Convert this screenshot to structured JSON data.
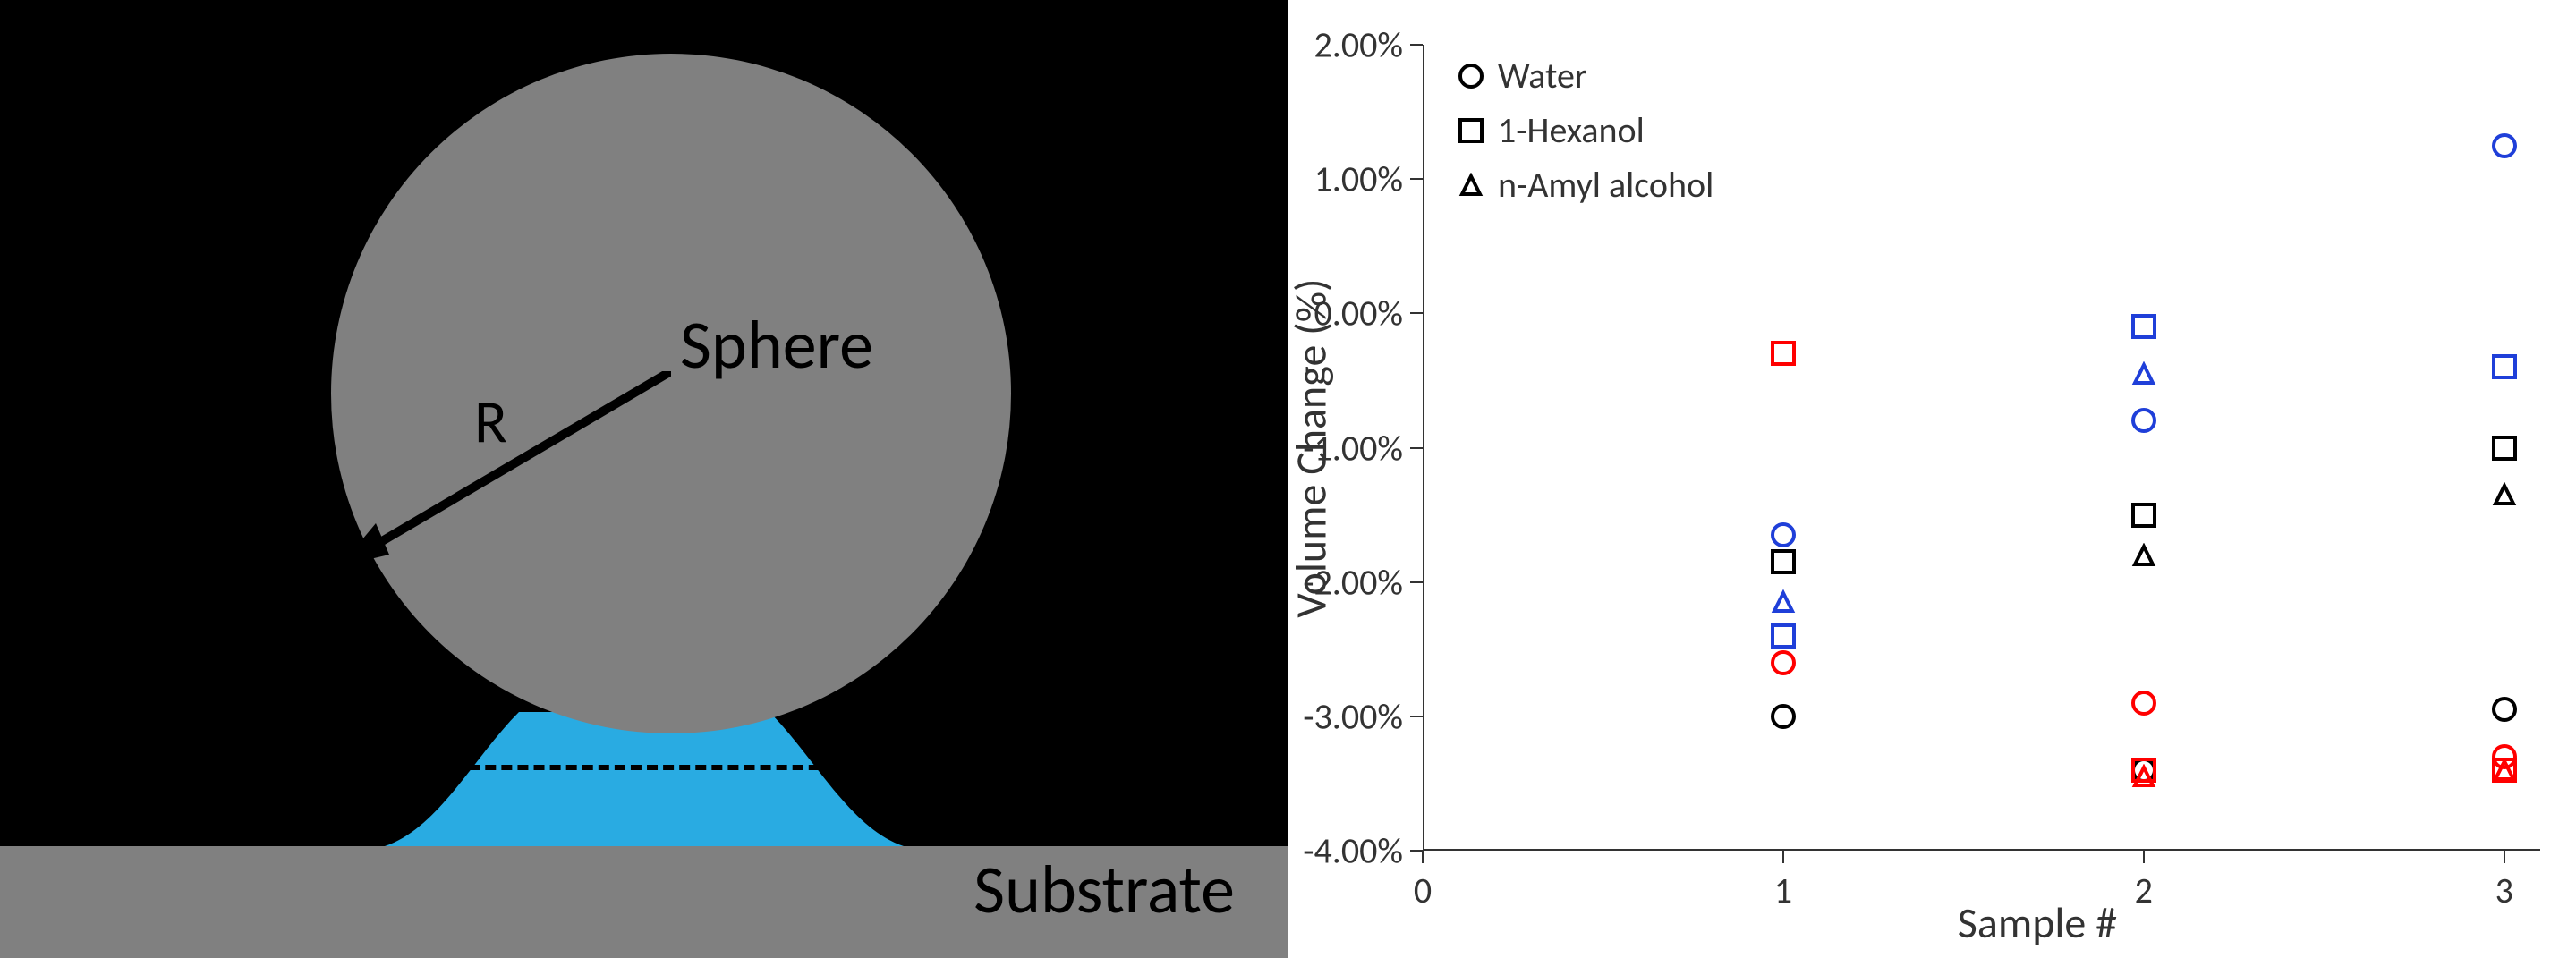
{
  "diagram": {
    "sphere_label": "Sphere",
    "radius_label": "R",
    "substrate_label": "Substrate",
    "sphere_color": "#808080",
    "substrate_color": "#808080",
    "meniscus_color": "#29abe2",
    "background_color": "#000000"
  },
  "chart": {
    "type": "scatter",
    "background_color": "#ffffff",
    "axis_color": "#333333",
    "text_color": "#333333",
    "label_fontsize": 40,
    "axis_title_fontsize": 48,
    "legend_fontsize": 40,
    "ylabel": "Volume Change (%)",
    "xlabel": "Sample #",
    "ylim": [
      -4.0,
      2.0
    ],
    "ytick_step": 1.0,
    "yticks": [
      -4.0,
      -3.0,
      -2.0,
      -1.0,
      0.0,
      1.0,
      2.0
    ],
    "ytick_labels": [
      "-4.00%",
      "-3.00%",
      "-2.00%",
      "-1.00%",
      "0.00%",
      "1.00%",
      "2.00%"
    ],
    "xlim": [
      0,
      3.1
    ],
    "xticks": [
      0,
      1,
      2,
      3
    ],
    "xtick_labels": [
      "0",
      "1",
      "2",
      "3"
    ],
    "marker_size": 28,
    "marker_stroke_width": 4,
    "colors": {
      "black": "#000000",
      "red": "#ff0000",
      "blue": "#1f3fd9"
    },
    "legend": [
      {
        "marker": "circle",
        "label": "Water"
      },
      {
        "marker": "square",
        "label": "1-Hexanol"
      },
      {
        "marker": "triangle",
        "label": "n-Amyl alcohol"
      }
    ],
    "series": [
      {
        "shape": "circle",
        "color": "black",
        "points": [
          [
            1,
            -3.0
          ],
          [
            2,
            -3.4
          ],
          [
            3,
            -2.95
          ]
        ]
      },
      {
        "shape": "circle",
        "color": "red",
        "points": [
          [
            1,
            -2.6
          ],
          [
            2,
            -2.9
          ],
          [
            3,
            -3.3
          ]
        ]
      },
      {
        "shape": "circle",
        "color": "blue",
        "points": [
          [
            1,
            -1.65
          ],
          [
            2,
            -0.8
          ],
          [
            3,
            1.25
          ]
        ]
      },
      {
        "shape": "square",
        "color": "black",
        "points": [
          [
            1,
            -1.85
          ],
          [
            2,
            -1.5
          ],
          [
            3,
            -1.0
          ]
        ]
      },
      {
        "shape": "square",
        "color": "red",
        "points": [
          [
            1,
            -0.3
          ],
          [
            2,
            -3.4
          ],
          [
            3,
            -3.4
          ]
        ]
      },
      {
        "shape": "square",
        "color": "blue",
        "points": [
          [
            1,
            -2.4
          ],
          [
            2,
            -0.1
          ],
          [
            3,
            -0.4
          ]
        ]
      },
      {
        "shape": "triangle",
        "color": "black",
        "points": [
          [
            2,
            -1.8
          ],
          [
            3,
            -1.35
          ]
        ]
      },
      {
        "shape": "triangle",
        "color": "red",
        "points": [
          [
            2,
            -3.45
          ],
          [
            3,
            -3.4
          ]
        ]
      },
      {
        "shape": "triangle",
        "color": "blue",
        "points": [
          [
            1,
            -2.15
          ],
          [
            2,
            -0.45
          ]
        ]
      }
    ]
  }
}
